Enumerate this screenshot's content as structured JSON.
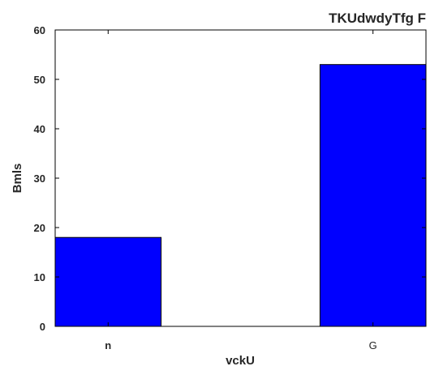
{
  "chart_data": {
    "type": "bar",
    "title": "TKUdwdyTfg F",
    "xlabel": "vckU",
    "ylabel": "Bmls",
    "categories": [
      "n",
      "G"
    ],
    "values": [
      18,
      53
    ],
    "ylim": [
      0,
      60
    ],
    "yticks": [
      0,
      10,
      20,
      30,
      40,
      50,
      60
    ],
    "bar_color": "#0000ff",
    "grid": false,
    "title_align": "right"
  }
}
